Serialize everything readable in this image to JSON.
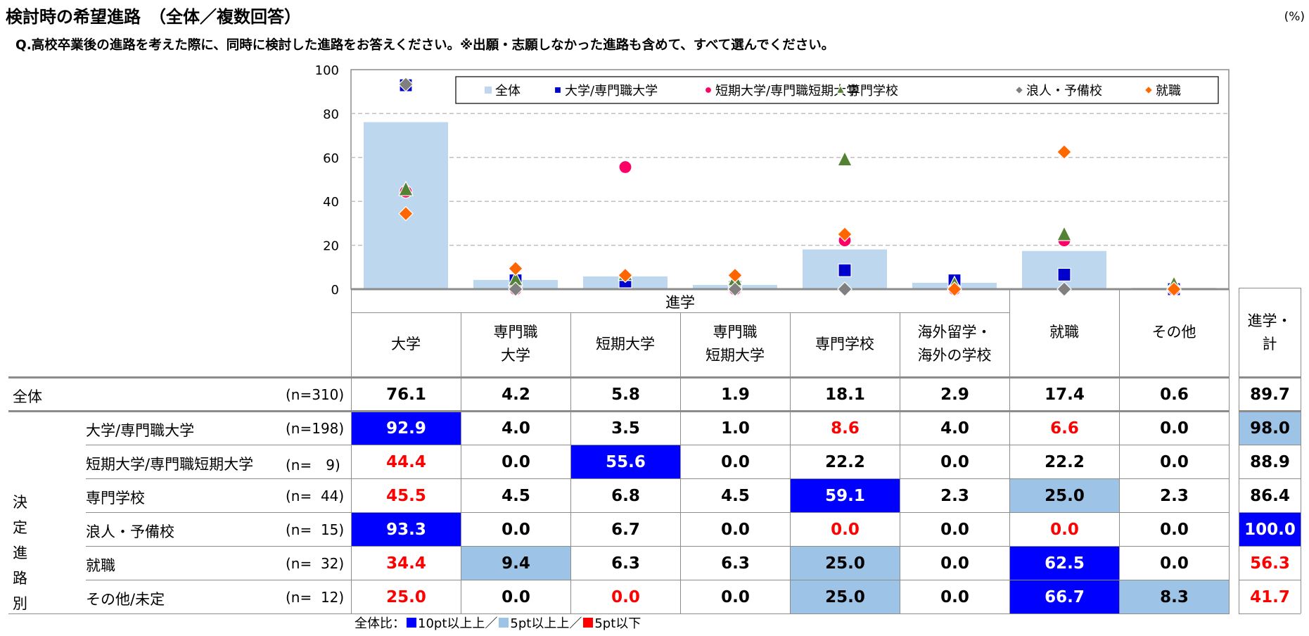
{
  "title": "検討時の希望進路　（全体／複数回答）",
  "unit": "(%)",
  "question": "Q.高校卒業後の進路を考えた際に、同時に検討した進路をお答えください。※出願・志願しなかった進路も含めて、すべて選んでください。",
  "table": {
    "group_header": "進学",
    "columns": [
      "大学",
      "専門職\n大学",
      "短期大学",
      "専門職\n短期大学",
      "専門学校",
      "海外留学・\n海外の学校",
      "就職",
      "その他"
    ],
    "total_column": "進学・\n計",
    "side_label": "決定\n進路別",
    "rows": [
      {
        "label": "全体",
        "n": "(n=310)",
        "values": [
          "76.1",
          "4.2",
          "5.8",
          "1.9",
          "18.1",
          "2.9",
          "17.4",
          "0.6",
          "89.7"
        ],
        "colors": [
          "",
          "",
          "",
          "",
          "",
          "",
          "",
          "",
          ""
        ]
      },
      {
        "label": "大学/専門職大学",
        "n": "(n=198)",
        "values": [
          "92.9",
          "4.0",
          "3.5",
          "1.0",
          "8.6",
          "4.0",
          "6.6",
          "0.0",
          "98.0"
        ],
        "colors": [
          "dark",
          "",
          "",
          "",
          "red",
          "",
          "red",
          "",
          "light"
        ]
      },
      {
        "label": "短期大学/専門職短期大学",
        "n": "(n=　9)",
        "values": [
          "44.4",
          "0.0",
          "55.6",
          "0.0",
          "22.2",
          "0.0",
          "22.2",
          "0.0",
          "88.9"
        ],
        "colors": [
          "red",
          "",
          "dark",
          "",
          "",
          "",
          "",
          "",
          ""
        ]
      },
      {
        "label": "専門学校",
        "n": "(n=  44)",
        "values": [
          "45.5",
          "4.5",
          "6.8",
          "4.5",
          "59.1",
          "2.3",
          "25.0",
          "2.3",
          "86.4"
        ],
        "colors": [
          "red",
          "",
          "",
          "",
          "dark",
          "",
          "light",
          "",
          ""
        ]
      },
      {
        "label": "浪人・予備校",
        "n": "(n=  15)",
        "values": [
          "93.3",
          "0.0",
          "6.7",
          "0.0",
          "0.0",
          "0.0",
          "0.0",
          "0.0",
          "100.0"
        ],
        "colors": [
          "dark",
          "",
          "",
          "",
          "red",
          "",
          "red",
          "",
          "dark"
        ]
      },
      {
        "label": "就職",
        "n": "(n=  32)",
        "values": [
          "34.4",
          "9.4",
          "6.3",
          "6.3",
          "25.0",
          "0.0",
          "62.5",
          "0.0",
          "56.3"
        ],
        "colors": [
          "red",
          "light",
          "",
          "",
          "light",
          "",
          "dark",
          "",
          "red"
        ]
      },
      {
        "label": "その他/未定",
        "n": "(n=  12)",
        "values": [
          "25.0",
          "0.0",
          "0.0",
          "0.0",
          "25.0",
          "0.0",
          "66.7",
          "8.3",
          "41.7"
        ],
        "colors": [
          "red",
          "",
          "red",
          "",
          "light",
          "",
          "dark",
          "light",
          "red"
        ]
      }
    ],
    "note": {
      "prefix": "全体比：",
      "items": [
        {
          "label": "10pt以上上",
          "color": "#0000ff",
          "sep": "／"
        },
        {
          "label": "5pt以上上",
          "color": "#9dc3e6",
          "sep": "／"
        },
        {
          "label": "5pt以下",
          "color": "#ff0000",
          "sep": ""
        }
      ]
    }
  },
  "chart_data": {
    "type": "bar",
    "categories": [
      "大学",
      "専門職大学",
      "短期大学",
      "専門職短期大学",
      "専門学校",
      "海外留学・海外の学校",
      "就職",
      "その他"
    ],
    "ylim": [
      0,
      100
    ],
    "yticks": [
      "0",
      "20",
      "40",
      "60",
      "80",
      "100"
    ],
    "grid": true,
    "legend_position": "top",
    "series": [
      {
        "name": "全体",
        "kind": "bar",
        "marker": "square",
        "color": "#bdd7ee",
        "values": [
          76.1,
          4.2,
          5.8,
          1.9,
          18.1,
          2.9,
          17.4,
          0.6
        ]
      },
      {
        "name": "大学/専門職大学",
        "kind": "marker",
        "marker": "square",
        "color": "#0000cc",
        "values": [
          92.9,
          4.0,
          3.5,
          1.0,
          8.6,
          4.0,
          6.6,
          0.0
        ]
      },
      {
        "name": "短期大学/専門職短期大学",
        "kind": "marker",
        "marker": "circle",
        "color": "#ff0066",
        "values": [
          44.4,
          0.0,
          55.6,
          0.0,
          22.2,
          0.0,
          22.2,
          0.0
        ]
      },
      {
        "name": "専門学校",
        "kind": "marker",
        "marker": "triangle",
        "color": "#548235",
        "values": [
          45.5,
          4.5,
          6.8,
          4.5,
          59.1,
          2.3,
          25.0,
          2.3
        ]
      },
      {
        "name": "浪人・予備校",
        "kind": "marker",
        "marker": "diamond",
        "color": "#7f7f7f",
        "values": [
          93.3,
          0.0,
          6.7,
          0.0,
          0.0,
          0.0,
          0.0,
          0.0
        ]
      },
      {
        "name": "就職",
        "kind": "marker",
        "marker": "diamond",
        "color": "#ff6600",
        "values": [
          34.4,
          9.4,
          6.3,
          6.3,
          25.0,
          0.0,
          62.5,
          0.0
        ]
      }
    ]
  }
}
